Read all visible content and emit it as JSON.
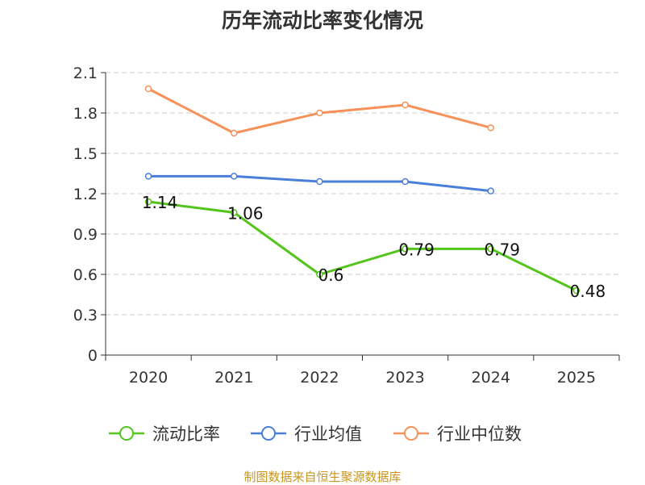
{
  "chart_data": {
    "type": "line",
    "title": "历年流动比率变化情况",
    "categories": [
      "2020",
      "2021",
      "2022",
      "2023",
      "2024",
      "2025"
    ],
    "ylim": [
      0,
      2.1
    ],
    "yticks": [
      "0",
      "0.3",
      "0.6",
      "0.9",
      "1.2",
      "1.5",
      "1.8",
      "2.1"
    ],
    "series": [
      {
        "name": "流动比率",
        "color": "#52c41a",
        "values": [
          1.14,
          1.06,
          0.6,
          0.79,
          0.79,
          0.48
        ],
        "labels": [
          "1.14",
          "1.06",
          "0.6",
          "0.79",
          "0.79",
          "0.48"
        ]
      },
      {
        "name": "行业均值",
        "color": "#4a7fd9",
        "values": [
          1.33,
          1.33,
          1.29,
          1.29,
          1.22,
          null
        ]
      },
      {
        "name": "行业中位数",
        "color": "#f7915a",
        "values": [
          1.98,
          1.65,
          1.8,
          1.86,
          1.69,
          null
        ]
      }
    ],
    "legend_position": "bottom",
    "grid": true
  },
  "source_text": "制图数据来自恒生聚源数据库"
}
